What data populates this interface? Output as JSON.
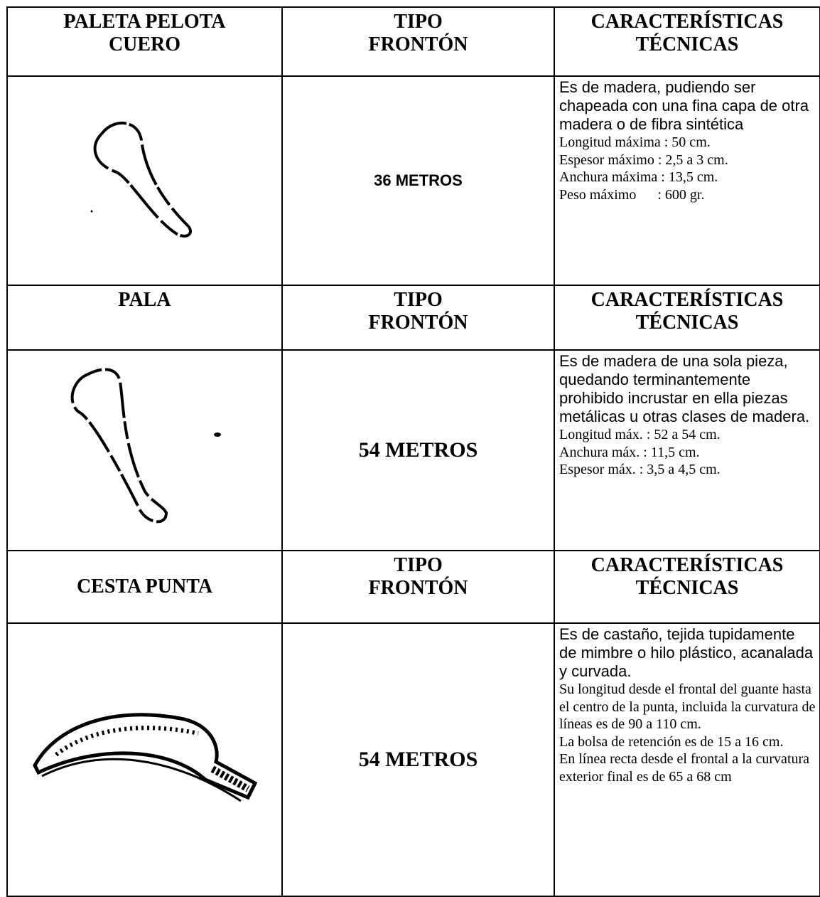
{
  "sections": [
    {
      "header": {
        "item": [
          "PALETA PELOTA",
          "CUERO"
        ],
        "type": [
          "TIPO",
          "FRONTÓN"
        ],
        "specs": [
          "CARACTERÍSTICAS",
          "TÉCNICAS"
        ]
      },
      "distance": "36 METROS",
      "description": [
        "Es de madera, pudiendo ser chapeada con una fina capa de otra madera o de fibra sintética"
      ],
      "specs": [
        "Longitud máxima : 50 cm.",
        "Espesor máximo : 2,5 a 3 cm.",
        "Anchura máxima : 13,5 cm.",
        "Peso máximo      : 600 gr."
      ]
    },
    {
      "header": {
        "item": [
          "PALA"
        ],
        "type": [
          "TIPO",
          "FRONTÓN"
        ],
        "specs": [
          "CARACTERÍSTICAS",
          "TÉCNICAS"
        ]
      },
      "distance": "54 METROS",
      "description": [
        "Es de madera de una sola pieza, quedando terminantemente prohibido incrustar en ella piezas metálicas u otras clases de madera."
      ],
      "specs": [
        "Longitud máx. : 52 a 54 cm.",
        "Anchura máx. : 11,5 cm.",
        "Espesor máx. : 3,5 a 4,5 cm."
      ]
    },
    {
      "header": {
        "item": [
          "CESTA PUNTA"
        ],
        "type": [
          "TIPO",
          "FRONTÓN"
        ],
        "specs": [
          "CARACTERÍSTICAS",
          "TÉCNICAS"
        ]
      },
      "distance": "54 METROS",
      "description": [
        "Es de castaño, tejida tupidamente de mimbre o hilo plástico, acanalada y curvada."
      ],
      "specs": [
        "Su longitud desde el frontal del guante hasta el centro de la punta, incluida la curvatura de líneas es de 90 a 110 cm.",
        "La bolsa de retención es de 15 a 16 cm.",
        "En línea recta desde el frontal a la curvatura exterior final es de 65 a 68 cm"
      ]
    }
  ]
}
